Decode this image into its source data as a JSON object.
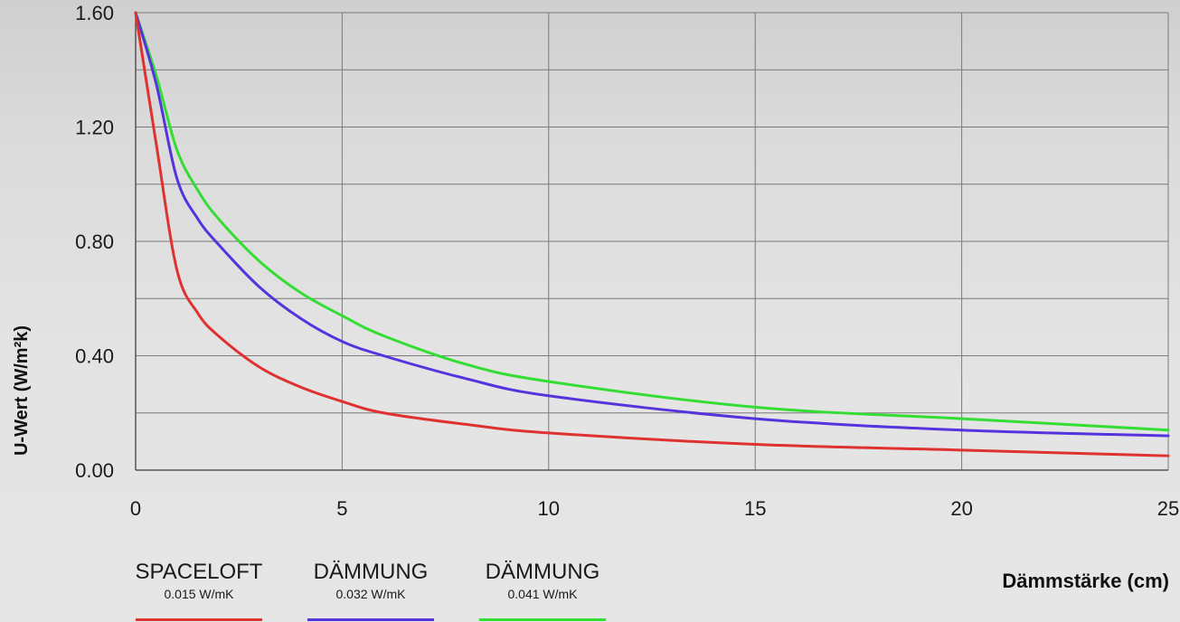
{
  "chart_data": {
    "type": "line",
    "xlabel": "Dämmstärke (cm)",
    "ylabel": "U-Wert (W/m²k)",
    "xlim": [
      0,
      25
    ],
    "ylim": [
      0,
      1.6
    ],
    "x_ticks": [
      "0",
      "5",
      "10",
      "15",
      "20",
      "25"
    ],
    "y_ticks": [
      "0.00",
      "0.40",
      "0.80",
      "1.20",
      "1.60"
    ],
    "grid": true,
    "legend_position": "bottom-left",
    "series": [
      {
        "name": "SPACELOFT",
        "detail": "0.015 W/mK",
        "color": "#e03131",
        "x": [
          0,
          0.5,
          1,
          1.5,
          2,
          3,
          4,
          5,
          6,
          8,
          10,
          15,
          20,
          25
        ],
        "y": [
          1.6,
          1.14,
          0.7,
          0.55,
          0.47,
          0.36,
          0.29,
          0.24,
          0.2,
          0.16,
          0.13,
          0.09,
          0.07,
          0.05
        ]
      },
      {
        "name": "DÄMMUNG",
        "detail": "0.032 W/mK",
        "color": "#5533dd",
        "x": [
          0,
          0.5,
          1,
          1.5,
          2,
          3,
          4,
          5,
          6,
          8,
          10,
          15,
          20,
          25
        ],
        "y": [
          1.6,
          1.35,
          1.02,
          0.88,
          0.79,
          0.64,
          0.53,
          0.45,
          0.4,
          0.32,
          0.26,
          0.18,
          0.14,
          0.12
        ]
      },
      {
        "name": "DÄMMUNG",
        "detail": "0.041 W/mK",
        "color": "#33dd33",
        "x": [
          0,
          0.5,
          1,
          1.5,
          2,
          3,
          4,
          5,
          6,
          8,
          10,
          15,
          20,
          25
        ],
        "y": [
          1.6,
          1.38,
          1.12,
          0.98,
          0.88,
          0.73,
          0.62,
          0.54,
          0.47,
          0.37,
          0.31,
          0.22,
          0.18,
          0.14
        ]
      }
    ]
  }
}
